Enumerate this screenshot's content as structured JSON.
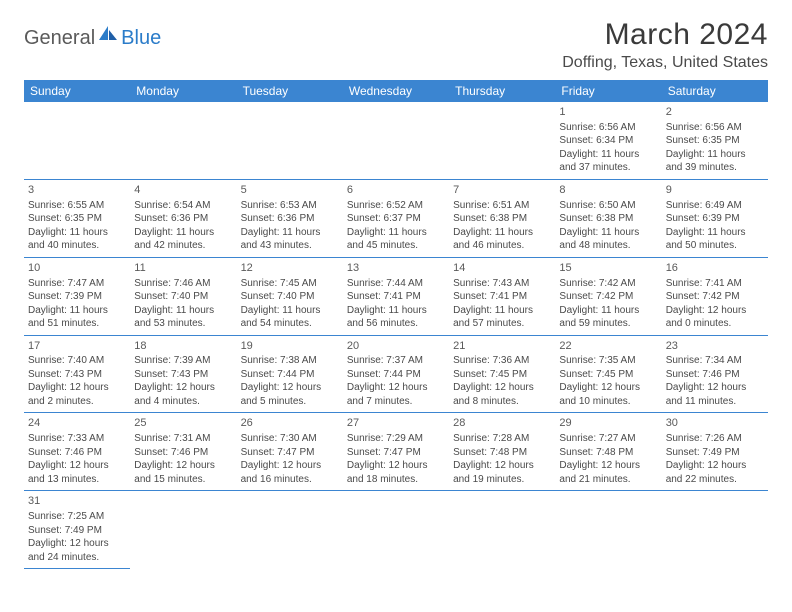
{
  "logo": {
    "part1": "General",
    "part2": "Blue"
  },
  "title": "March 2024",
  "location": "Doffing, Texas, United States",
  "colors": {
    "header_bg": "#3b85d1",
    "header_text": "#ffffff",
    "border": "#3b85d1",
    "text": "#4a4a4a",
    "logo_blue": "#2b7cc9"
  },
  "weekdays": [
    "Sunday",
    "Monday",
    "Tuesday",
    "Wednesday",
    "Thursday",
    "Friday",
    "Saturday"
  ],
  "weeks": [
    [
      null,
      null,
      null,
      null,
      null,
      {
        "d": "1",
        "sr": "6:56 AM",
        "ss": "6:34 PM",
        "dl": "11 hours and 37 minutes."
      },
      {
        "d": "2",
        "sr": "6:56 AM",
        "ss": "6:35 PM",
        "dl": "11 hours and 39 minutes."
      }
    ],
    [
      {
        "d": "3",
        "sr": "6:55 AM",
        "ss": "6:35 PM",
        "dl": "11 hours and 40 minutes."
      },
      {
        "d": "4",
        "sr": "6:54 AM",
        "ss": "6:36 PM",
        "dl": "11 hours and 42 minutes."
      },
      {
        "d": "5",
        "sr": "6:53 AM",
        "ss": "6:36 PM",
        "dl": "11 hours and 43 minutes."
      },
      {
        "d": "6",
        "sr": "6:52 AM",
        "ss": "6:37 PM",
        "dl": "11 hours and 45 minutes."
      },
      {
        "d": "7",
        "sr": "6:51 AM",
        "ss": "6:38 PM",
        "dl": "11 hours and 46 minutes."
      },
      {
        "d": "8",
        "sr": "6:50 AM",
        "ss": "6:38 PM",
        "dl": "11 hours and 48 minutes."
      },
      {
        "d": "9",
        "sr": "6:49 AM",
        "ss": "6:39 PM",
        "dl": "11 hours and 50 minutes."
      }
    ],
    [
      {
        "d": "10",
        "sr": "7:47 AM",
        "ss": "7:39 PM",
        "dl": "11 hours and 51 minutes."
      },
      {
        "d": "11",
        "sr": "7:46 AM",
        "ss": "7:40 PM",
        "dl": "11 hours and 53 minutes."
      },
      {
        "d": "12",
        "sr": "7:45 AM",
        "ss": "7:40 PM",
        "dl": "11 hours and 54 minutes."
      },
      {
        "d": "13",
        "sr": "7:44 AM",
        "ss": "7:41 PM",
        "dl": "11 hours and 56 minutes."
      },
      {
        "d": "14",
        "sr": "7:43 AM",
        "ss": "7:41 PM",
        "dl": "11 hours and 57 minutes."
      },
      {
        "d": "15",
        "sr": "7:42 AM",
        "ss": "7:42 PM",
        "dl": "11 hours and 59 minutes."
      },
      {
        "d": "16",
        "sr": "7:41 AM",
        "ss": "7:42 PM",
        "dl": "12 hours and 0 minutes."
      }
    ],
    [
      {
        "d": "17",
        "sr": "7:40 AM",
        "ss": "7:43 PM",
        "dl": "12 hours and 2 minutes."
      },
      {
        "d": "18",
        "sr": "7:39 AM",
        "ss": "7:43 PM",
        "dl": "12 hours and 4 minutes."
      },
      {
        "d": "19",
        "sr": "7:38 AM",
        "ss": "7:44 PM",
        "dl": "12 hours and 5 minutes."
      },
      {
        "d": "20",
        "sr": "7:37 AM",
        "ss": "7:44 PM",
        "dl": "12 hours and 7 minutes."
      },
      {
        "d": "21",
        "sr": "7:36 AM",
        "ss": "7:45 PM",
        "dl": "12 hours and 8 minutes."
      },
      {
        "d": "22",
        "sr": "7:35 AM",
        "ss": "7:45 PM",
        "dl": "12 hours and 10 minutes."
      },
      {
        "d": "23",
        "sr": "7:34 AM",
        "ss": "7:46 PM",
        "dl": "12 hours and 11 minutes."
      }
    ],
    [
      {
        "d": "24",
        "sr": "7:33 AM",
        "ss": "7:46 PM",
        "dl": "12 hours and 13 minutes."
      },
      {
        "d": "25",
        "sr": "7:31 AM",
        "ss": "7:46 PM",
        "dl": "12 hours and 15 minutes."
      },
      {
        "d": "26",
        "sr": "7:30 AM",
        "ss": "7:47 PM",
        "dl": "12 hours and 16 minutes."
      },
      {
        "d": "27",
        "sr": "7:29 AM",
        "ss": "7:47 PM",
        "dl": "12 hours and 18 minutes."
      },
      {
        "d": "28",
        "sr": "7:28 AM",
        "ss": "7:48 PM",
        "dl": "12 hours and 19 minutes."
      },
      {
        "d": "29",
        "sr": "7:27 AM",
        "ss": "7:48 PM",
        "dl": "12 hours and 21 minutes."
      },
      {
        "d": "30",
        "sr": "7:26 AM",
        "ss": "7:49 PM",
        "dl": "12 hours and 22 minutes."
      }
    ],
    [
      {
        "d": "31",
        "sr": "7:25 AM",
        "ss": "7:49 PM",
        "dl": "12 hours and 24 minutes."
      },
      null,
      null,
      null,
      null,
      null,
      null
    ]
  ],
  "labels": {
    "sunrise": "Sunrise:",
    "sunset": "Sunset:",
    "daylight": "Daylight:"
  }
}
